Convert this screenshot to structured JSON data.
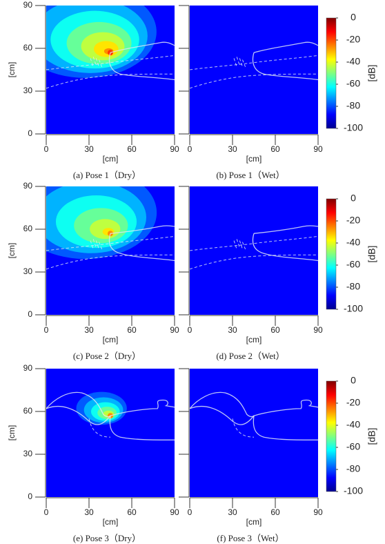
{
  "chart_data": [
    {
      "type": "heatmap",
      "caption": "(a)  Pose 1（Dry）",
      "xlabel": "[cm]",
      "ylabel": "[cm]",
      "xlim": [
        0,
        90
      ],
      "ylim": [
        0,
        90
      ],
      "xticks": [
        0,
        30,
        60,
        90
      ],
      "yticks": [
        0,
        30,
        60,
        90
      ],
      "background": -100,
      "peak": {
        "x": 45,
        "y": 57,
        "value": -20
      },
      "pose": 1
    },
    {
      "type": "heatmap",
      "caption": "(b)  Pose 1（Wet）",
      "xlabel": "[cm]",
      "ylabel": "[cm]",
      "xlim": [
        0,
        90
      ],
      "ylim": [
        0,
        90
      ],
      "xticks": [
        0,
        30,
        60,
        90
      ],
      "yticks": [
        0,
        30,
        60,
        90
      ],
      "background": -100,
      "pose": 1,
      "colorbar": {
        "label": "[dB]",
        "lim": [
          -100,
          0
        ],
        "ticks": [
          0,
          -20,
          -40,
          -60,
          -80,
          -100
        ]
      }
    },
    {
      "type": "heatmap",
      "caption": "(c)  Pose 2（Dry）",
      "xlabel": "[cm]",
      "ylabel": "[cm]",
      "xlim": [
        0,
        90
      ],
      "ylim": [
        0,
        90
      ],
      "xticks": [
        0,
        30,
        60,
        90
      ],
      "yticks": [
        0,
        30,
        60,
        90
      ],
      "background": -100,
      "peak": {
        "x": 45,
        "y": 57,
        "value": -30
      },
      "pose": 2
    },
    {
      "type": "heatmap",
      "caption": "(d)  Pose 2（Wet）",
      "xlabel": "[cm]",
      "ylabel": "[cm]",
      "xlim": [
        0,
        90
      ],
      "ylim": [
        0,
        90
      ],
      "xticks": [
        0,
        30,
        60,
        90
      ],
      "yticks": [
        0,
        30,
        60,
        90
      ],
      "background": -100,
      "pose": 2,
      "colorbar": {
        "label": "[dB]",
        "lim": [
          -100,
          0
        ],
        "ticks": [
          0,
          -20,
          -40,
          -60,
          -80,
          -100
        ]
      }
    },
    {
      "type": "heatmap",
      "caption": "(e)  Pose 3（Dry）",
      "xlabel": "[cm]",
      "ylabel": "[cm]",
      "xlim": [
        0,
        90
      ],
      "ylim": [
        0,
        90
      ],
      "xticks": [
        0,
        30,
        60,
        90
      ],
      "yticks": [
        0,
        30,
        60,
        90
      ],
      "background": -100,
      "peak": {
        "x": 45,
        "y": 57,
        "value": -30
      },
      "pose": 3
    },
    {
      "type": "heatmap",
      "caption": "(f)  Pose 3（Wet）",
      "xlabel": "[cm]",
      "ylabel": "[cm]",
      "xlim": [
        0,
        90
      ],
      "ylim": [
        0,
        90
      ],
      "xticks": [
        0,
        30,
        60,
        90
      ],
      "yticks": [
        0,
        30,
        60,
        90
      ],
      "background": -100,
      "pose": 3,
      "colorbar": {
        "label": "[dB]",
        "lim": [
          -100,
          0
        ],
        "ticks": [
          0,
          -20,
          -40,
          -60,
          -80,
          -100
        ]
      }
    }
  ]
}
